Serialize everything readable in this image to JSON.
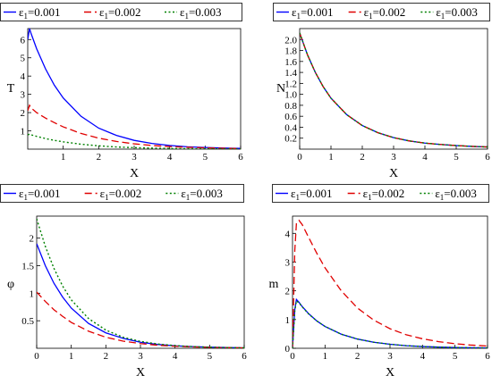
{
  "colors": {
    "eps_0_001": "#0000ff",
    "eps_0_002": "#e00000",
    "eps_0_003": "#008000"
  },
  "legend": {
    "items": [
      {
        "prefix": "ε",
        "sub": "1",
        "value": "=0.001",
        "style": "solid",
        "color": "#0000ff"
      },
      {
        "prefix": "ε",
        "sub": "1",
        "value": "=0.002",
        "style": "dashed",
        "color": "#e00000"
      },
      {
        "prefix": "ε",
        "sub": "1",
        "value": "=0.003",
        "style": "dotted",
        "color": "#008000"
      }
    ]
  },
  "chart_data": [
    {
      "type": "line",
      "xlabel": "X",
      "ylabel": "T",
      "xlim": [
        0,
        6
      ],
      "ylim": [
        0,
        6.6
      ],
      "xticks": [
        "1",
        "2",
        "3",
        "4",
        "5",
        "6"
      ],
      "yticks": [
        "1",
        "2",
        "3",
        "4",
        "5",
        "6"
      ],
      "legend": "top",
      "series": [
        {
          "name": "ε1=0.001",
          "style": "solid",
          "color": "#0000ff",
          "x": [
            0,
            0.05,
            0.1,
            0.25,
            0.5,
            0.75,
            1,
            1.5,
            2,
            2.5,
            3,
            3.5,
            4,
            4.5,
            5,
            5.5,
            6
          ],
          "y": [
            6.0,
            6.6,
            6.3,
            5.5,
            4.4,
            3.5,
            2.8,
            1.8,
            1.15,
            0.75,
            0.48,
            0.31,
            0.2,
            0.13,
            0.09,
            0.06,
            0.04
          ]
        },
        {
          "name": "ε1=0.002",
          "style": "dashed",
          "color": "#e00000",
          "x": [
            0,
            0.05,
            0.1,
            0.25,
            0.5,
            0.75,
            1,
            1.5,
            2,
            2.5,
            3,
            3.5,
            4,
            4.5,
            5,
            5.5,
            6
          ],
          "y": [
            2.1,
            2.4,
            2.25,
            2.0,
            1.7,
            1.45,
            1.22,
            0.86,
            0.6,
            0.42,
            0.29,
            0.2,
            0.14,
            0.1,
            0.07,
            0.05,
            0.03
          ]
        },
        {
          "name": "ε1=0.003",
          "style": "dotted",
          "color": "#008000",
          "x": [
            0,
            0.05,
            0.1,
            0.25,
            0.5,
            0.75,
            1,
            1.5,
            2,
            2.5,
            3,
            3.5,
            4,
            4.5,
            5,
            5.5,
            6
          ],
          "y": [
            0.78,
            0.82,
            0.78,
            0.7,
            0.58,
            0.48,
            0.4,
            0.27,
            0.18,
            0.12,
            0.08,
            0.055,
            0.037,
            0.025,
            0.017,
            0.012,
            0.008
          ]
        }
      ]
    },
    {
      "type": "line",
      "xlabel": "X",
      "ylabel": "N",
      "xlim": [
        0,
        6
      ],
      "ylim": [
        0,
        2.2
      ],
      "xticks": [
        "0",
        "1",
        "2",
        "3",
        "4",
        "5",
        "6"
      ],
      "yticks": [
        "0.2",
        "0.4",
        "0.6",
        "0.8",
        "1.0",
        "1.2",
        "1.4",
        "1.6",
        "1.8",
        "2.0"
      ],
      "legend": "top",
      "series": [
        {
          "name": "ε1=0.001",
          "style": "solid",
          "color": "#0000ff",
          "x": [
            0,
            0.25,
            0.5,
            0.75,
            1,
            1.5,
            2,
            2.5,
            3,
            3.5,
            4,
            4.5,
            5,
            5.5,
            6
          ],
          "y": [
            2.12,
            1.72,
            1.4,
            1.14,
            0.93,
            0.63,
            0.43,
            0.3,
            0.21,
            0.15,
            0.11,
            0.085,
            0.065,
            0.05,
            0.04
          ]
        },
        {
          "name": "ε1=0.002",
          "style": "dashed",
          "color": "#e00000",
          "x": [
            0,
            0.25,
            0.5,
            0.75,
            1,
            1.5,
            2,
            2.5,
            3,
            3.5,
            4,
            4.5,
            5,
            5.5,
            6
          ],
          "y": [
            2.12,
            1.72,
            1.4,
            1.14,
            0.93,
            0.63,
            0.43,
            0.3,
            0.21,
            0.15,
            0.11,
            0.085,
            0.065,
            0.05,
            0.04
          ]
        },
        {
          "name": "ε1=0.003",
          "style": "dotted",
          "color": "#008000",
          "x": [
            0,
            0.25,
            0.5,
            0.75,
            1,
            1.5,
            2,
            2.5,
            3,
            3.5,
            4,
            4.5,
            5,
            5.5,
            6
          ],
          "y": [
            2.12,
            1.72,
            1.4,
            1.14,
            0.93,
            0.63,
            0.43,
            0.3,
            0.21,
            0.15,
            0.11,
            0.085,
            0.065,
            0.05,
            0.04
          ]
        }
      ]
    },
    {
      "type": "line",
      "xlabel": "X",
      "ylabel": "φ",
      "xlim": [
        0,
        6
      ],
      "ylim": [
        0,
        2.4
      ],
      "xticks": [
        "0",
        "1",
        "2",
        "3",
        "4",
        "5",
        "6"
      ],
      "yticks": [
        "0.5",
        "1",
        "1.5",
        "2"
      ],
      "legend": "top",
      "series": [
        {
          "name": "ε1=0.001",
          "style": "solid",
          "color": "#0000ff",
          "x": [
            0,
            0.25,
            0.5,
            0.75,
            1,
            1.5,
            2,
            2.5,
            3,
            3.5,
            4,
            4.5,
            5,
            5.5,
            6
          ],
          "y": [
            1.9,
            1.5,
            1.18,
            0.93,
            0.73,
            0.45,
            0.28,
            0.18,
            0.11,
            0.07,
            0.045,
            0.03,
            0.02,
            0.013,
            0.008
          ]
        },
        {
          "name": "ε1=0.002",
          "style": "dashed",
          "color": "#e00000",
          "x": [
            0,
            0.25,
            0.5,
            0.75,
            1,
            1.5,
            2,
            2.5,
            3,
            3.5,
            4,
            4.5,
            5,
            5.5,
            6
          ],
          "y": [
            1.02,
            0.85,
            0.7,
            0.58,
            0.47,
            0.31,
            0.2,
            0.13,
            0.085,
            0.055,
            0.037,
            0.025,
            0.016,
            0.011,
            0.007
          ]
        },
        {
          "name": "ε1=0.003",
          "style": "dotted",
          "color": "#008000",
          "x": [
            0,
            0.25,
            0.5,
            0.75,
            1,
            1.5,
            2,
            2.5,
            3,
            3.5,
            4,
            4.5,
            5,
            5.5,
            6
          ],
          "y": [
            2.35,
            1.85,
            1.45,
            1.13,
            0.88,
            0.54,
            0.33,
            0.2,
            0.125,
            0.078,
            0.049,
            0.031,
            0.02,
            0.013,
            0.008
          ]
        }
      ]
    },
    {
      "type": "line",
      "xlabel": "X",
      "ylabel": "m",
      "xlim": [
        0,
        6
      ],
      "ylim": [
        0,
        4.6
      ],
      "xticks": [
        "0",
        "1",
        "2",
        "3",
        "4",
        "5",
        "6"
      ],
      "yticks": [
        "0",
        "1",
        "2",
        "3",
        "4"
      ],
      "legend": "top",
      "series": [
        {
          "name": "ε1=0.001",
          "style": "solid",
          "color": "#0000ff",
          "x": [
            0,
            0.03,
            0.07,
            0.12,
            0.2,
            0.3,
            0.5,
            0.75,
            1,
            1.5,
            2,
            2.5,
            3,
            3.5,
            4,
            4.5,
            5,
            5.5,
            6
          ],
          "y": [
            0,
            0.6,
            1.35,
            1.7,
            1.6,
            1.45,
            1.2,
            0.95,
            0.76,
            0.49,
            0.32,
            0.21,
            0.14,
            0.09,
            0.06,
            0.04,
            0.027,
            0.018,
            0.012
          ]
        },
        {
          "name": "ε1=0.002",
          "style": "dashed",
          "color": "#e00000",
          "x": [
            0,
            0.03,
            0.07,
            0.12,
            0.2,
            0.3,
            0.5,
            0.75,
            1,
            1.5,
            2,
            2.5,
            3,
            3.5,
            4,
            4.5,
            5,
            5.5,
            6
          ],
          "y": [
            0,
            1.5,
            3.4,
            4.35,
            4.45,
            4.3,
            3.85,
            3.3,
            2.8,
            2.0,
            1.4,
            0.98,
            0.68,
            0.47,
            0.33,
            0.23,
            0.16,
            0.11,
            0.08
          ]
        },
        {
          "name": "ε1=0.003",
          "style": "dotted",
          "color": "#008000",
          "x": [
            0,
            0.03,
            0.07,
            0.12,
            0.2,
            0.3,
            0.5,
            0.75,
            1,
            1.5,
            2,
            2.5,
            3,
            3.5,
            4,
            4.5,
            5,
            5.5,
            6
          ],
          "y": [
            0,
            0.55,
            1.3,
            1.65,
            1.58,
            1.44,
            1.19,
            0.95,
            0.76,
            0.49,
            0.32,
            0.21,
            0.14,
            0.09,
            0.06,
            0.04,
            0.027,
            0.018,
            0.012
          ]
        }
      ]
    }
  ]
}
